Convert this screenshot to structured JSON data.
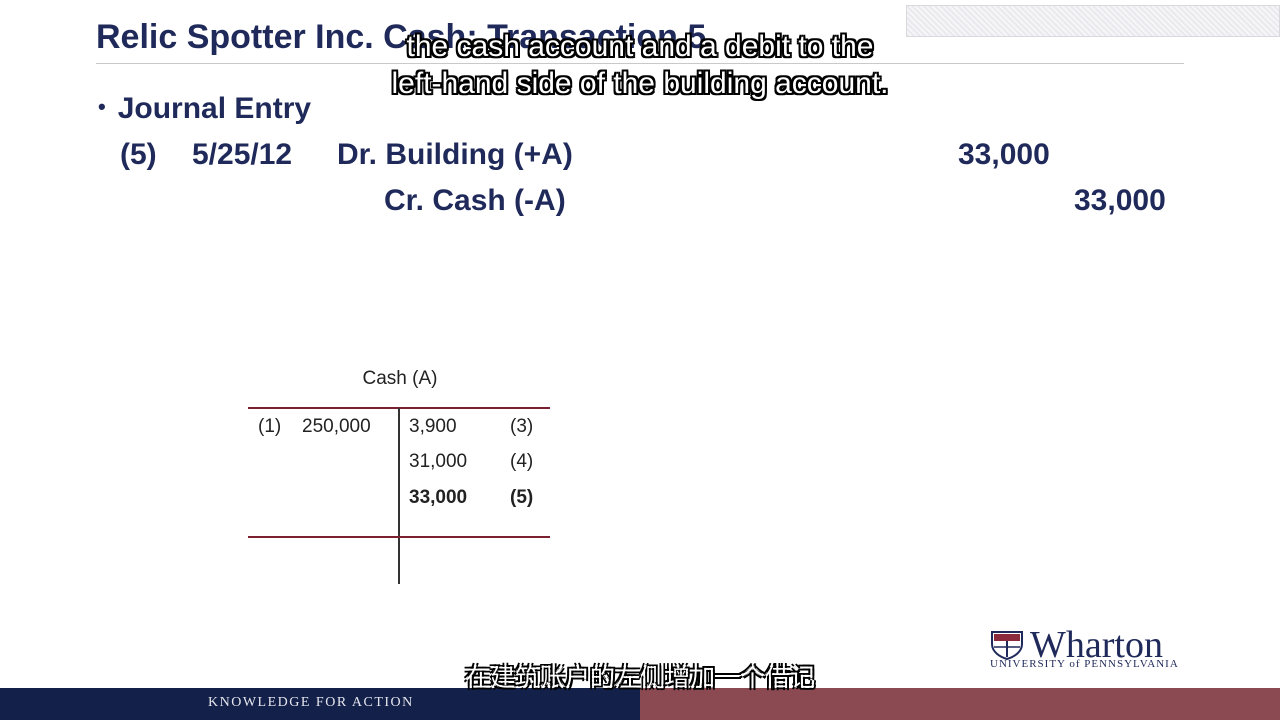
{
  "slide": {
    "title": "Relic Spotter Inc. Cash: Transaction 5"
  },
  "captions": {
    "english_line1": "the cash account and a debit to the",
    "english_line2": "left-hand side of the building account.",
    "chinese": "在建筑账户的左侧增加一个借记"
  },
  "journal": {
    "bullet": "Journal Entry",
    "entry_number": "(5)",
    "date": "5/25/12",
    "debit_account": "Dr. Building (+A)",
    "debit_amount": "33,000",
    "credit_account": "Cr. Cash (-A)",
    "credit_amount": "33,000"
  },
  "t_account": {
    "title": "Cash (A)",
    "debits": [
      {
        "ref": "(1)",
        "amount": "250,000"
      }
    ],
    "credits": [
      {
        "amount": "3,900",
        "ref": "(3)"
      },
      {
        "amount": "31,000",
        "ref": "(4)"
      },
      {
        "amount": "33,000",
        "ref": "(5)",
        "highlight": true
      }
    ]
  },
  "branding": {
    "logo_word": "Wharton",
    "logo_sub": "UNIVERSITY of PENNSYLVANIA",
    "tagline": "KNOWLEDGE FOR ACTION"
  },
  "colors": {
    "title": "#1f2a5a",
    "footer_left": "#132049",
    "footer_right": "#8b4a52",
    "t_rule": "#7a2030"
  }
}
